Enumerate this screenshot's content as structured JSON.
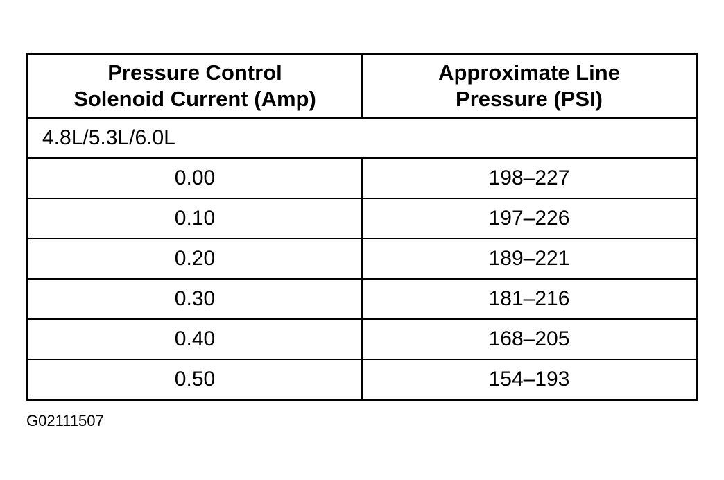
{
  "table": {
    "header": [
      [
        "Pressure Control",
        "Solenoid Current (Amp)"
      ],
      [
        "Approximate Line",
        "Pressure (PSI)"
      ]
    ],
    "group": "4.8L/5.3L/6.0L",
    "rows": [
      [
        "0.00",
        "198–227"
      ],
      [
        "0.10",
        "197–226"
      ],
      [
        "0.20",
        "189–221"
      ],
      [
        "0.30",
        "181–216"
      ],
      [
        "0.40",
        "168–205"
      ],
      [
        "0.50",
        "154–193"
      ]
    ]
  },
  "figure_id": "G02111507"
}
